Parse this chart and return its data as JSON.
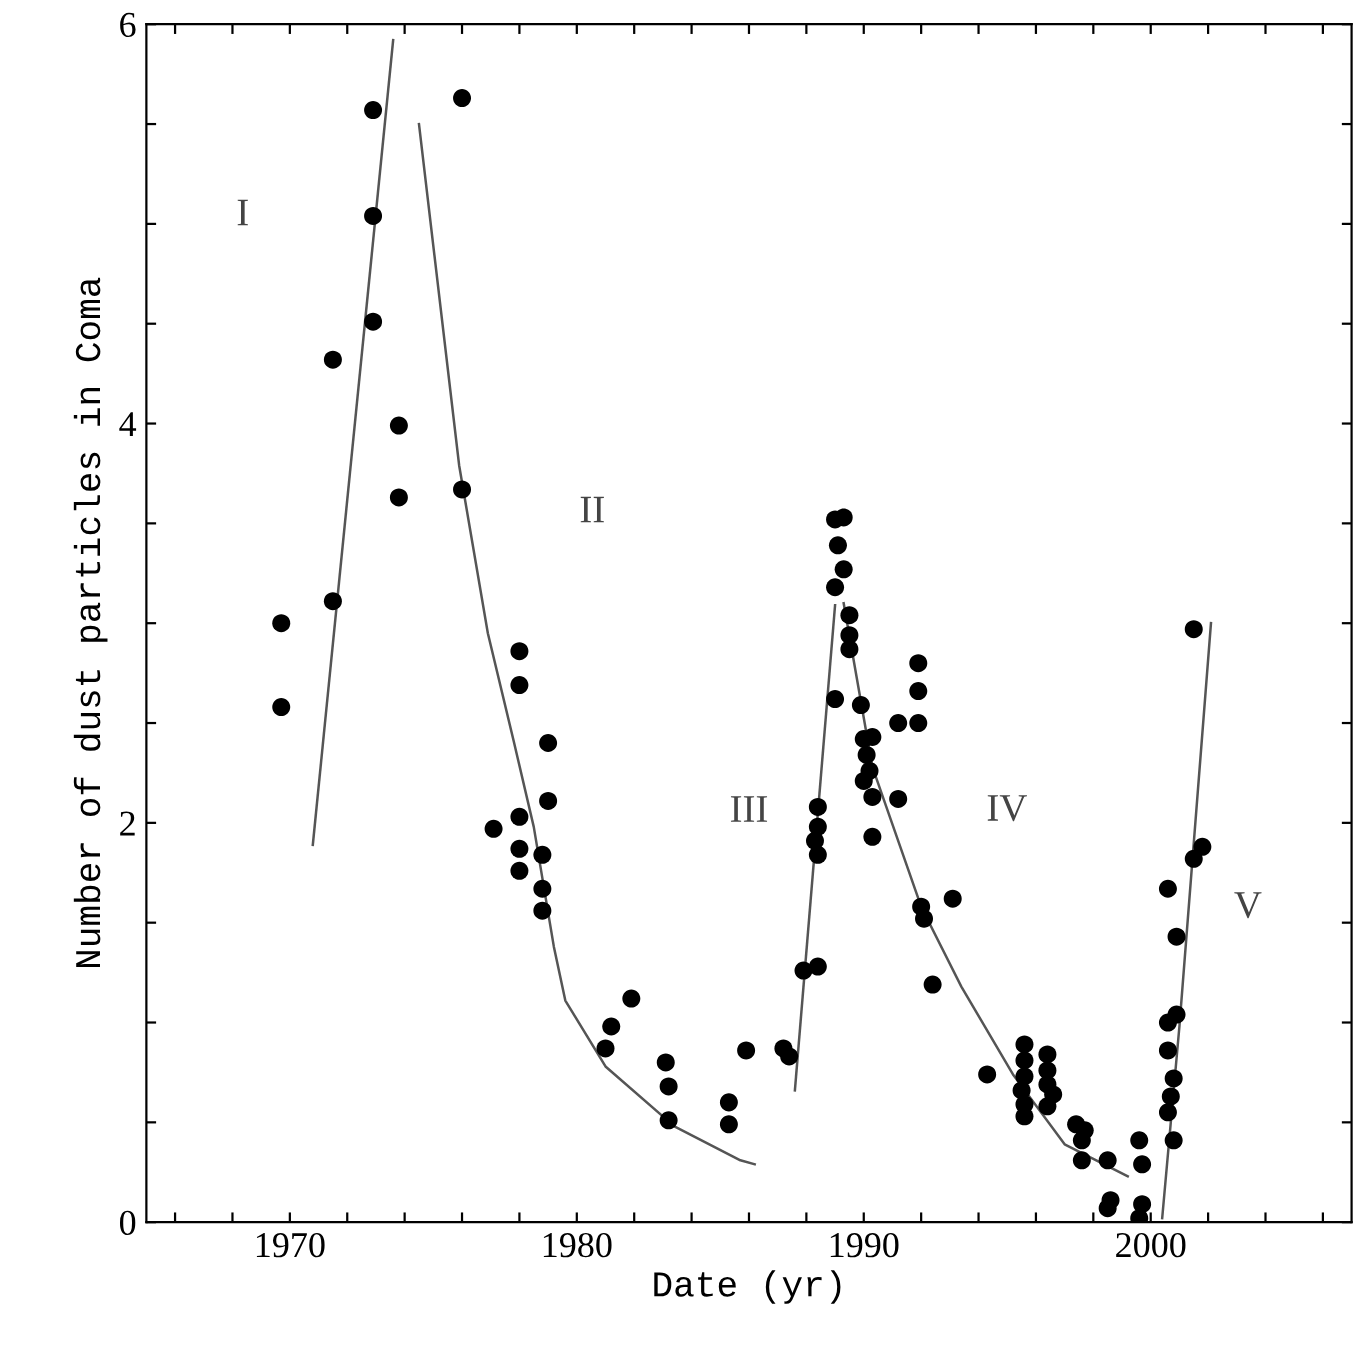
{
  "chart_data": {
    "type": "scatter",
    "xlabel": "Date (yr)",
    "ylabel": "Number of dust particles in Coma",
    "xlim": [
      1965,
      2007
    ],
    "ylim": [
      0,
      6
    ],
    "xticks": [
      {
        "value": 1966,
        "label": null
      },
      {
        "value": 1968,
        "label": null
      },
      1970,
      {
        "value": 1972,
        "label": null
      },
      {
        "value": 1974,
        "label": null
      },
      {
        "value": 1976,
        "label": null
      },
      {
        "value": 1978,
        "label": null
      },
      1980,
      {
        "value": 1982,
        "label": null
      },
      {
        "value": 1984,
        "label": null
      },
      {
        "value": 1986,
        "label": null
      },
      {
        "value": 1988,
        "label": null
      },
      1990,
      {
        "value": 1992,
        "label": null
      },
      {
        "value": 1994,
        "label": null
      },
      {
        "value": 1996,
        "label": null
      },
      {
        "value": 1998,
        "label": null
      },
      2000,
      {
        "value": 2002,
        "label": null
      },
      {
        "value": 2004,
        "label": null
      },
      {
        "value": 2006,
        "label": null
      }
    ],
    "yticks": [
      0,
      {
        "value": 0.5,
        "label": null
      },
      {
        "value": 1,
        "label": null
      },
      {
        "value": 1.5,
        "label": null
      },
      2,
      {
        "value": 2.5,
        "label": null
      },
      {
        "value": 3,
        "label": null
      },
      {
        "value": 3.5,
        "label": null
      },
      4,
      {
        "value": 4.5,
        "label": null
      },
      {
        "value": 5,
        "label": null
      },
      {
        "value": 5.5,
        "label": null
      },
      6
    ],
    "grid": false,
    "series": [
      {
        "marker": "circle",
        "color": "#000000",
        "x": [
          1972.9,
          1976.0,
          1972.9,
          1972.9,
          1971.5,
          1973.8,
          1973.8,
          1976.0,
          1971.5,
          1969.7,
          1969.7,
          1978.0,
          1978.0,
          1979.0,
          1979.0,
          1977.1,
          1978.0,
          1978.0,
          1978.0,
          1978.8,
          1978.8,
          1978.8,
          1981.0,
          1981.2,
          1981.9,
          1983.1,
          1983.2,
          1983.2,
          1985.3,
          1985.3,
          1985.9,
          1987.2,
          1987.4,
          1987.9,
          1988.4,
          1988.3,
          1988.4,
          1988.4,
          1988.4,
          1989.0,
          1989.3,
          1989.1,
          1989.3,
          1989.0,
          1989.0,
          1989.5,
          1989.5,
          1989.5,
          1989.9,
          1990.0,
          1990.3,
          1990.1,
          1990.2,
          1990.0,
          1990.3,
          1990.3,
          1991.2,
          1991.9,
          1991.9,
          1991.9,
          1991.2,
          1992.0,
          1992.1,
          1993.1,
          1992.4,
          1994.3,
          1995.6,
          1995.6,
          1995.6,
          1995.5,
          1995.6,
          1995.6,
          1996.4,
          1996.4,
          1996.4,
          1996.6,
          1996.4,
          1997.4,
          1997.7,
          1997.6,
          1997.6,
          1998.5,
          1998.6,
          1998.5,
          1999.6,
          1999.7,
          1999.7,
          1999.6,
          2000.8,
          2000.6,
          2000.7,
          2000.8,
          2000.6,
          2000.6,
          2000.9,
          2000.9,
          2000.6,
          2001.5,
          2001.8,
          2001.5
        ],
        "values": [
          5.57,
          5.63,
          5.04,
          4.51,
          4.32,
          3.99,
          3.63,
          3.67,
          3.11,
          3.0,
          2.58,
          2.86,
          2.69,
          2.4,
          2.11,
          1.97,
          2.03,
          1.87,
          1.76,
          1.84,
          1.67,
          1.56,
          0.87,
          0.98,
          1.12,
          0.8,
          0.68,
          0.51,
          0.6,
          0.49,
          0.86,
          0.87,
          0.83,
          1.26,
          1.28,
          1.91,
          1.98,
          2.08,
          1.84,
          3.52,
          3.53,
          3.39,
          3.27,
          3.18,
          2.62,
          3.04,
          2.94,
          2.87,
          2.59,
          2.42,
          2.43,
          2.34,
          2.26,
          2.21,
          2.13,
          1.93,
          2.5,
          2.5,
          2.66,
          2.8,
          2.12,
          1.58,
          1.52,
          1.62,
          1.19,
          0.74,
          0.89,
          0.81,
          0.73,
          0.66,
          0.59,
          0.53,
          0.84,
          0.76,
          0.69,
          0.64,
          0.58,
          0.49,
          0.46,
          0.41,
          0.31,
          0.31,
          0.11,
          0.07,
          0.41,
          0.29,
          0.09,
          0.02,
          0.41,
          0.55,
          0.63,
          0.72,
          0.86,
          1.0,
          1.04,
          1.43,
          1.67,
          1.82,
          1.88,
          2.97
        ]
      },
      {
        "type": "line",
        "color": "#555555",
        "x": [
          1970.8,
          1973.6
        ],
        "values": [
          1.89,
          5.92
        ]
      },
      {
        "type": "line",
        "color": "#555555",
        "x": [
          1974.5,
          1975.9,
          1976.9,
          1977.8,
          1978.5,
          1979.2,
          1979.6,
          1981.0,
          1983.4,
          1985.7,
          1986.2
        ],
        "values": [
          5.5,
          3.79,
          2.95,
          2.41,
          1.98,
          1.38,
          1.11,
          0.78,
          0.48,
          0.31,
          0.29
        ]
      },
      {
        "type": "line",
        "color": "#555555",
        "x": [
          1987.6,
          1989.0
        ],
        "values": [
          0.66,
          3.09
        ]
      },
      {
        "type": "line",
        "color": "#555555",
        "x": [
          1989.3,
          1990.3,
          1992.0,
          1993.4,
          1995.2,
          1997.0,
          1999.2
        ],
        "values": [
          3.1,
          2.28,
          1.58,
          1.18,
          0.74,
          0.39,
          0.23
        ]
      },
      {
        "type": "line",
        "color": "#555555",
        "x": [
          2000.4,
          2001.0,
          2002.1
        ],
        "values": [
          0.02,
          0.98,
          3.0
        ]
      }
    ],
    "annotations": [
      "I",
      "II",
      "III",
      "IV",
      "V"
    ]
  }
}
